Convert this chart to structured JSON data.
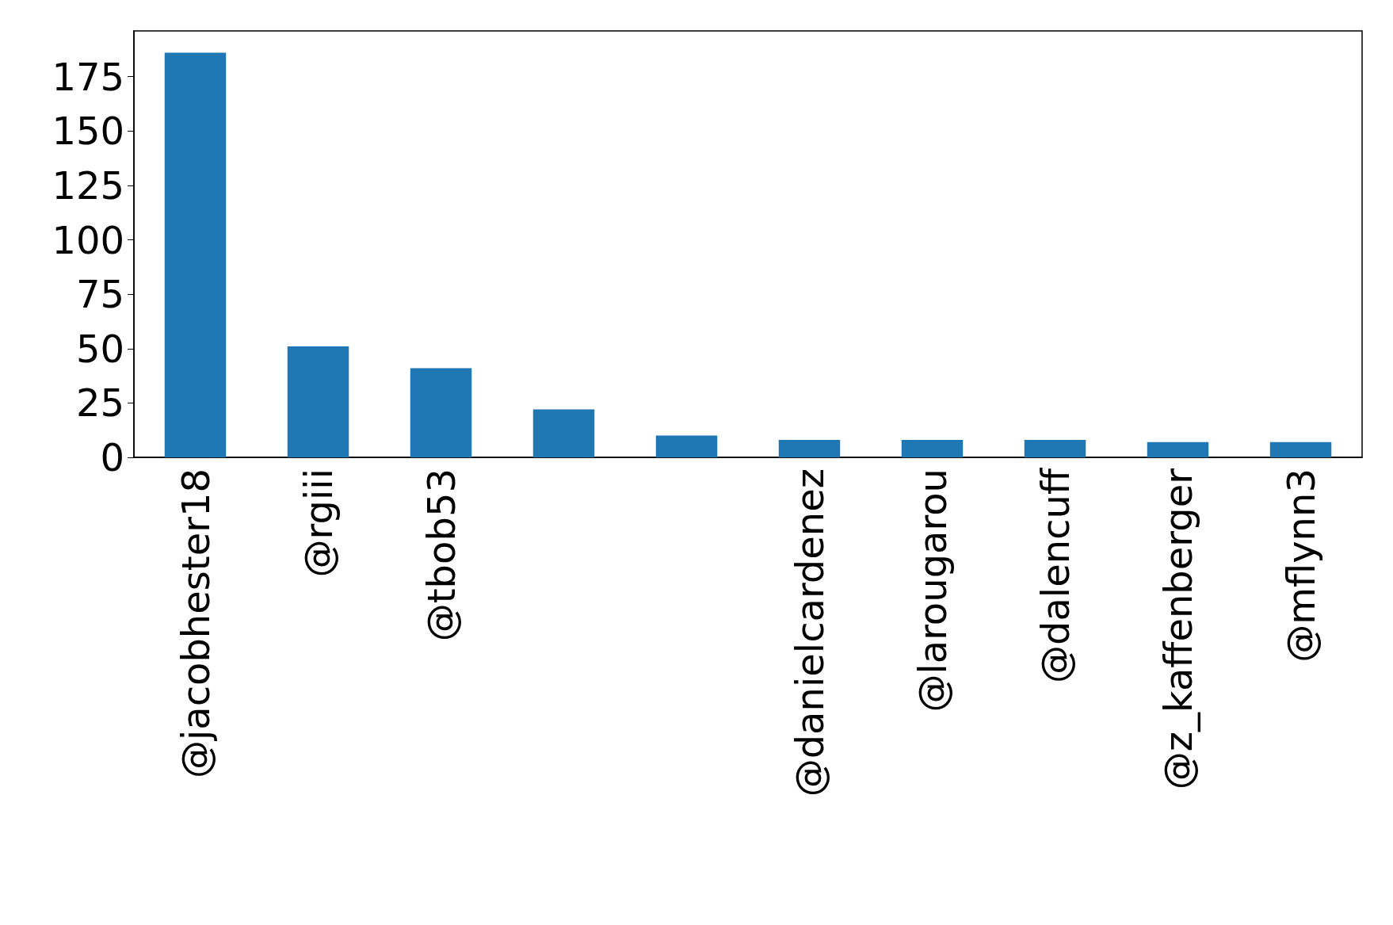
{
  "chart_data": {
    "type": "bar",
    "categories": [
      "@jacobhester18",
      "@rgiii",
      "@tbob53",
      null,
      null,
      "@danielcardenez",
      "@larougarou",
      "@dalencuff",
      "@z_kaffenberger",
      "@mflynn3"
    ],
    "values": [
      186,
      51,
      41,
      22,
      10,
      8,
      8,
      8,
      7,
      7
    ],
    "color": "#1f77b4",
    "ylim": [
      0,
      196
    ],
    "yticks": [
      0,
      25,
      50,
      75,
      100,
      125,
      150,
      175
    ],
    "grid": false
  }
}
